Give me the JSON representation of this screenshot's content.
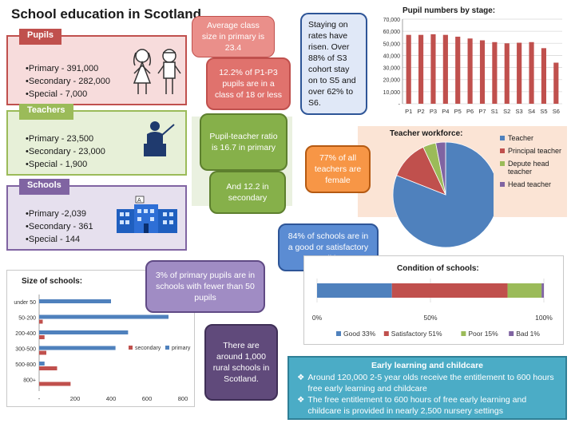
{
  "title": "School education in Scotland",
  "pupils": {
    "label": "Pupils",
    "items": [
      "Primary - 391,000",
      "Secondary - 282,000",
      "Special - 7,000"
    ]
  },
  "teachers": {
    "label": "Teachers",
    "items": [
      "Primary - 23,500",
      "Secondary - 23,000",
      "Special - 1,900"
    ]
  },
  "schools": {
    "label": "Schools",
    "items": [
      "Primary -2,039",
      "Secondary - 361",
      "Special - 144"
    ]
  },
  "school_icon_letter": "A",
  "callouts": {
    "avg_class": "Average class size in primary is 23.4",
    "p1_p3": "12.2% of P1-P3 pupils are in a class of 18 or less",
    "ratio_primary": "Pupil-teacher ratio is 16.7 in primary",
    "ratio_secondary": "And 12.2 in secondary",
    "staying": "Staying on rates have risen. Over 88% of S3 cohort stay on to S5 and over 62% to S6.",
    "female": "77% of all teachers are female",
    "good_schools": "84% of schools are in a good or satisfactory condition",
    "small_schools": "3% of primary pupils are in schools with fewer than 50 pupils",
    "rural": "There are around 1,000 rural schools in Scotland."
  },
  "early_learning": {
    "title": "Early learning and childcare",
    "items": [
      "Around 120,000 2-5 year olds receive the entitlement to 600 hours free early learning and childcare",
      "The free entitlement to 600 hours of free early learning and childcare is provided in nearly 2,500 nursery settings"
    ]
  },
  "colors": {
    "blue": "#4f81bd",
    "red": "#c0504d",
    "green": "#9bbb59",
    "purple": "#8064a2",
    "pupils_bg": "#f7dcdc",
    "teachers_bg": "#e7f0d8",
    "schools_bg": "#e6e0ee"
  },
  "chart_data": [
    {
      "id": "pupil_numbers",
      "type": "bar",
      "title": "Pupil numbers by stage:",
      "categories": [
        "P1",
        "P2",
        "P3",
        "P4",
        "P5",
        "P6",
        "P7",
        "S1",
        "S2",
        "S3",
        "S4",
        "S5",
        "S6"
      ],
      "values": [
        57000,
        57000,
        57500,
        57000,
        55500,
        54000,
        52500,
        51000,
        50000,
        50500,
        51000,
        46000,
        34000
      ],
      "ylim": [
        0,
        70000
      ],
      "yticks": [
        "-",
        "10,000",
        "20,000",
        "30,000",
        "40,000",
        "50,000",
        "60,000",
        "70,000"
      ],
      "grid": true
    },
    {
      "id": "teacher_workforce",
      "type": "pie",
      "title": "Teacher workforce:",
      "series": [
        {
          "name": "Teacher",
          "value": 81
        },
        {
          "name": "Principal teacher",
          "value": 12
        },
        {
          "name": "Depute head teacher",
          "value": 4
        },
        {
          "name": "Head teacher",
          "value": 3
        }
      ],
      "legend": "right"
    },
    {
      "id": "condition",
      "type": "bar",
      "title": "Condition of schools:",
      "stacked": true,
      "orientation": "horizontal",
      "series": [
        {
          "name": "Good 33%",
          "value": 33
        },
        {
          "name": "Satisfactory 51%",
          "value": 51
        },
        {
          "name": "Poor 15%",
          "value": 15
        },
        {
          "name": "Bad 1%",
          "value": 1
        }
      ],
      "xticks": [
        "0%",
        "50%",
        "100%"
      ],
      "xlim": [
        0,
        100
      ],
      "legend": "bottom"
    },
    {
      "id": "school_size",
      "type": "bar",
      "orientation": "horizontal",
      "title": "Size of schools:",
      "categories": [
        "under 50",
        "50-200",
        "200-400",
        "300-500",
        "500-800",
        "800+"
      ],
      "series": [
        {
          "name": "secondary",
          "values": [
            0,
            20,
            30,
            40,
            100,
            175
          ]
        },
        {
          "name": "primary",
          "values": [
            400,
            720,
            495,
            425,
            30,
            0
          ]
        }
      ],
      "xlim": [
        0,
        800
      ],
      "xticks": [
        "-",
        "200",
        "400",
        "600",
        "800"
      ],
      "legend": "right"
    }
  ]
}
